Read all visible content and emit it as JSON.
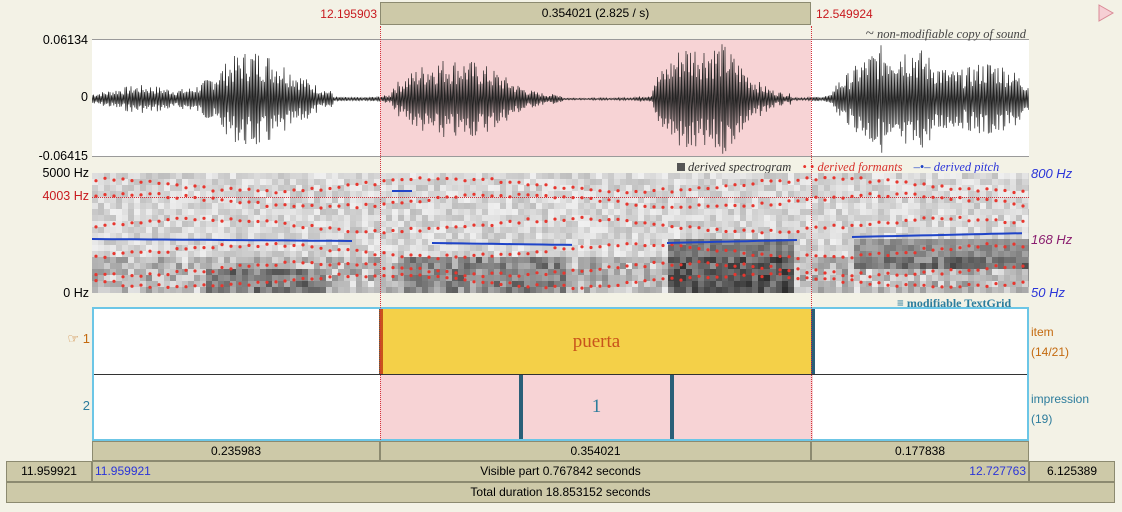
{
  "selection": {
    "start": "12.195903",
    "end": "12.549924",
    "duration_label": "0.354021 (2.825 / s)"
  },
  "waveform": {
    "max": "0.06134",
    "zero": "0",
    "min": "-0.06415",
    "caption_symbol": "~",
    "caption": "non-modifiable copy of sound"
  },
  "spectrogram": {
    "top_hz": "5000 Hz",
    "cursor_hz": "4003 Hz",
    "bottom_hz": "0 Hz",
    "pitch_top": "800 Hz",
    "pitch_cursor": "168 Hz",
    "pitch_bottom": "50 Hz",
    "legend_spectrogram": "derived spectrogram",
    "legend_formants": "derived formants",
    "legend_pitch": "derived pitch"
  },
  "textgrid": {
    "caption": "modifiable TextGrid",
    "tiers": [
      {
        "number": "1",
        "marker": "☞",
        "name": "item",
        "count": "(14/21)",
        "interval_text": "puerta"
      },
      {
        "number": "2",
        "marker": "",
        "name": "impression",
        "count": "(19)",
        "interval_text": "1"
      }
    ]
  },
  "durations": {
    "left": "0.235983",
    "selection": "0.354021",
    "right": "0.177838"
  },
  "visible_bar": {
    "window_start": "11.959921",
    "visible_start": "11.959921",
    "label": "Visible part 0.767842 seconds",
    "visible_end": "12.727763",
    "window_end": "6.125389"
  },
  "total_bar": {
    "label": "Total duration 18.853152 seconds"
  },
  "colors": {
    "selection_fill": "#f7d3d5",
    "interval_fill": "#f4d048",
    "boundary": "#2a5f78",
    "cursor": "#d4323b",
    "pitch": "#1f44c8",
    "formant": "#e8362e"
  }
}
